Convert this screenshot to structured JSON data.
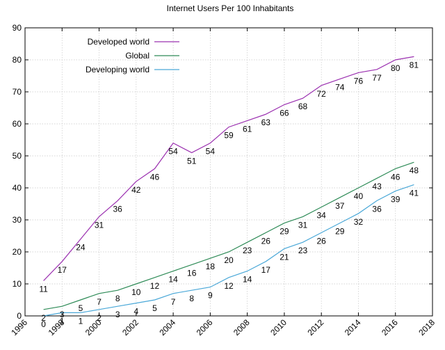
{
  "chart_data": {
    "type": "line",
    "title": "Internet Users Per 100 Inhabitants",
    "xlabel": "",
    "ylabel": "",
    "xlim": [
      1996,
      2018
    ],
    "ylim": [
      0,
      90
    ],
    "x_ticks": [
      1996,
      1998,
      2000,
      2002,
      2004,
      2006,
      2008,
      2010,
      2012,
      2014,
      2016,
      2018
    ],
    "y_ticks": [
      0,
      10,
      20,
      30,
      40,
      50,
      60,
      70,
      80,
      90
    ],
    "grid": true,
    "legend_position": "top-left",
    "x": [
      1997,
      1998,
      1999,
      2000,
      2001,
      2002,
      2003,
      2004,
      2005,
      2006,
      2007,
      2008,
      2009,
      2010,
      2011,
      2012,
      2013,
      2014,
      2015,
      2016,
      2017
    ],
    "series": [
      {
        "name": "Developed world",
        "color": "#9b30b0",
        "values": [
          11,
          17,
          24,
          31,
          36,
          42,
          46,
          54,
          51,
          54,
          59,
          61,
          63,
          66,
          68,
          72,
          74,
          76,
          77,
          80,
          81
        ],
        "labels": [
          "11",
          "17",
          "24",
          "31",
          "36",
          "42",
          "46",
          "54",
          "51",
          "54",
          "59",
          "61",
          "63",
          "66",
          "68",
          "72",
          "74",
          "76",
          "77",
          "80",
          "81"
        ]
      },
      {
        "name": "Global",
        "color": "#2e8b57",
        "values": [
          2,
          3,
          5,
          7,
          8,
          10,
          12,
          14,
          16,
          18,
          20,
          23,
          26,
          29,
          31,
          34,
          37,
          40,
          43,
          46,
          48
        ],
        "labels": [
          "2",
          "3",
          "5",
          "7",
          "8",
          "10",
          "12",
          "14",
          "16",
          "18",
          "20",
          "23",
          "26",
          "29",
          "31",
          "34",
          "37",
          "40",
          "43",
          "46",
          "48"
        ]
      },
      {
        "name": "Developing world",
        "color": "#4aa8d8",
        "values": [
          0,
          1,
          1,
          2,
          3,
          4,
          5,
          7,
          8,
          9,
          12,
          14,
          17,
          21,
          23,
          26,
          29,
          32,
          36,
          39,
          41
        ],
        "labels": [
          "0",
          "1",
          "1",
          "2",
          "3",
          "4",
          "5",
          "7",
          "8",
          "9",
          "12",
          "14",
          "17",
          "21",
          "23",
          "26",
          "29",
          "32",
          "36",
          "39",
          "41"
        ]
      }
    ]
  }
}
